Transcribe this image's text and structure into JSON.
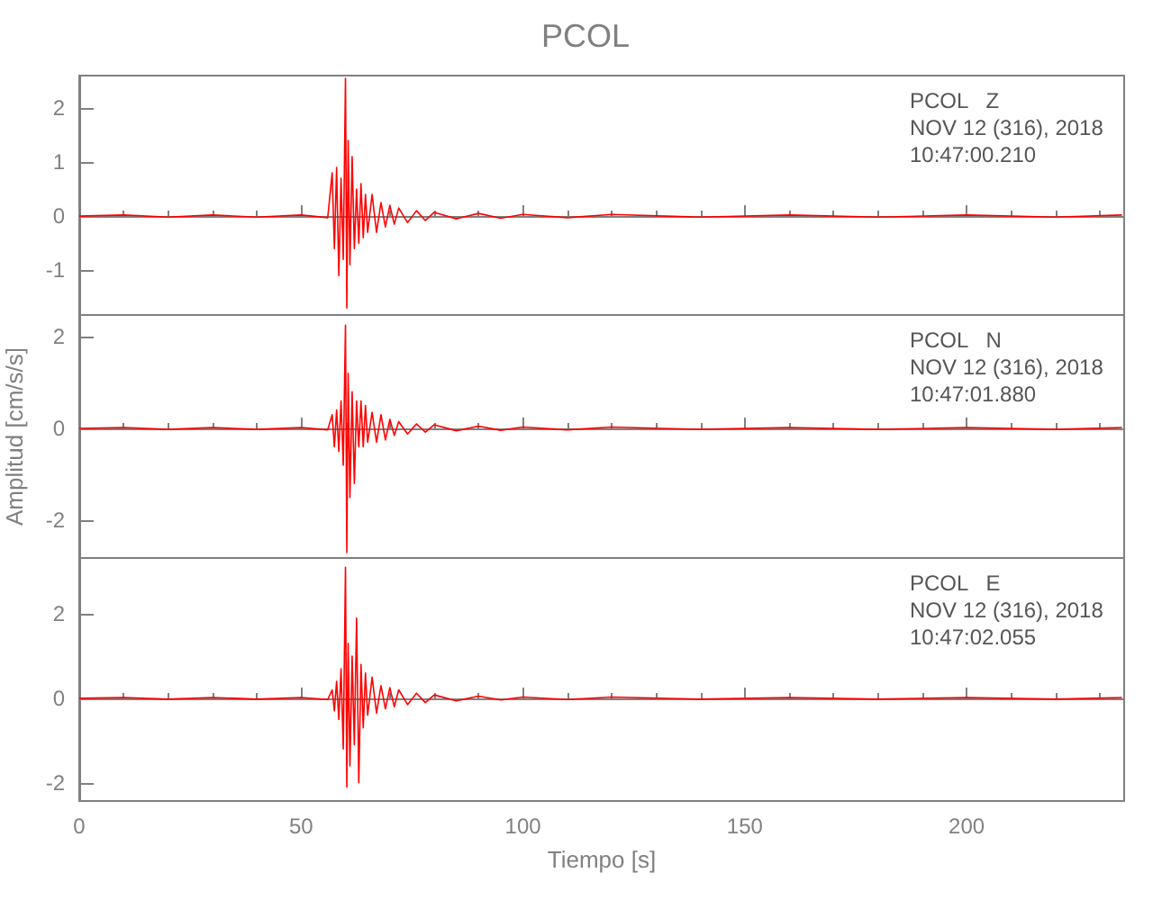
{
  "chart_data": [
    {
      "type": "line",
      "title": "PCOL",
      "annotations": [
        "PCOL   Z",
        "NOV 12 (316), 2018",
        "10:47:00.210"
      ],
      "xlim": [
        0,
        235.5
      ],
      "xticks": [
        0,
        50,
        100,
        150,
        200
      ],
      "ylim": [
        -1.83,
        2.6
      ],
      "yticks": [
        -1,
        0,
        1,
        2
      ],
      "tick_labels": "y",
      "marker": "none",
      "series": [
        {
          "color": "#ff0000",
          "x": [
            0,
            10,
            20,
            30,
            40,
            50,
            56,
            57,
            57.5,
            58,
            58.5,
            59,
            59.5,
            60,
            60.3,
            60.6,
            61,
            61.5,
            62,
            62.5,
            63,
            63.5,
            64,
            64.5,
            65,
            66,
            67,
            68,
            69,
            70,
            71,
            72,
            74,
            76,
            78,
            80,
            85,
            90,
            95,
            100,
            110,
            120,
            140,
            160,
            180,
            200,
            220,
            235
          ],
          "values": [
            0,
            0.02,
            -0.02,
            0.02,
            -0.02,
            0.02,
            -0.03,
            0.8,
            -0.6,
            0.9,
            -1.1,
            0.7,
            -0.8,
            2.55,
            -1.7,
            1.4,
            -0.9,
            1.1,
            -0.6,
            0.5,
            -0.5,
            0.6,
            -0.4,
            0.4,
            -0.3,
            0.4,
            -0.3,
            0.25,
            -0.2,
            0.2,
            -0.15,
            0.15,
            -0.12,
            0.1,
            -0.08,
            0.07,
            -0.05,
            0.05,
            -0.04,
            0.03,
            -0.03,
            0.03,
            -0.02,
            0.02,
            -0.02,
            0.02,
            -0.02,
            0.02
          ]
        }
      ]
    },
    {
      "type": "line",
      "ylabel": "Amplitud [cm/s/s]",
      "annotations": [
        "PCOL   N",
        "NOV 12 (316), 2018",
        "10:47:01.880"
      ],
      "xlim": [
        0,
        235.5
      ],
      "xticks": [
        0,
        50,
        100,
        150,
        200
      ],
      "ylim": [
        -2.82,
        2.47
      ],
      "yticks": [
        -2,
        0,
        2
      ],
      "tick_labels": "y",
      "marker": "none",
      "series": [
        {
          "color": "#ff0000",
          "x": [
            0,
            10,
            20,
            30,
            40,
            50,
            56,
            57,
            57.5,
            58,
            58.5,
            59,
            59.5,
            60,
            60.3,
            60.6,
            61,
            61.5,
            62,
            62.5,
            63,
            63.5,
            64,
            64.5,
            65,
            66,
            67,
            68,
            69,
            70,
            71,
            72,
            74,
            76,
            78,
            80,
            85,
            90,
            95,
            100,
            110,
            120,
            140,
            160,
            180,
            200,
            220,
            235
          ],
          "values": [
            0,
            0.02,
            -0.02,
            0.02,
            -0.02,
            0.02,
            -0.03,
            0.3,
            -0.4,
            0.4,
            -0.5,
            0.6,
            -0.8,
            2.25,
            -2.7,
            1.2,
            -1.5,
            0.8,
            -1.2,
            0.6,
            -0.4,
            0.6,
            -0.4,
            0.5,
            -0.3,
            0.35,
            -0.3,
            0.3,
            -0.25,
            0.2,
            -0.15,
            0.15,
            -0.12,
            0.1,
            -0.08,
            0.08,
            -0.05,
            0.05,
            -0.04,
            0.03,
            -0.03,
            0.03,
            -0.02,
            0.02,
            -0.02,
            0.02,
            -0.02,
            0.02
          ]
        }
      ]
    },
    {
      "type": "line",
      "xlabel": "Tiempo [s]",
      "annotations": [
        "PCOL   E",
        "NOV 12 (316), 2018",
        "10:47:02.055"
      ],
      "xlim": [
        0,
        235.5
      ],
      "xticks": [
        0,
        50,
        100,
        150,
        200
      ],
      "ylim": [
        -2.43,
        3.32
      ],
      "yticks": [
        -2,
        0,
        2
      ],
      "marker": "none",
      "series": [
        {
          "color": "#ff0000",
          "x": [
            0,
            10,
            20,
            30,
            40,
            50,
            56,
            57,
            57.5,
            58,
            58.5,
            59,
            59.5,
            60,
            60.3,
            60.6,
            61,
            61.5,
            62,
            62.5,
            63,
            63.5,
            64,
            64.5,
            65,
            66,
            67,
            68,
            69,
            70,
            71,
            72,
            74,
            76,
            78,
            80,
            85,
            90,
            95,
            100,
            110,
            120,
            140,
            160,
            180,
            200,
            220,
            235
          ],
          "values": [
            0,
            0.02,
            -0.02,
            0.02,
            -0.02,
            0.02,
            -0.03,
            0.2,
            -0.3,
            0.4,
            -0.5,
            0.7,
            -1.2,
            3.1,
            -2.1,
            1.3,
            -1.6,
            1.0,
            -1.1,
            1.9,
            -2.0,
            0.8,
            -0.7,
            0.6,
            -0.4,
            0.5,
            -0.35,
            0.3,
            -0.25,
            0.25,
            -0.2,
            0.2,
            -0.15,
            0.12,
            -0.1,
            0.08,
            -0.06,
            0.05,
            -0.04,
            0.03,
            -0.03,
            0.03,
            -0.02,
            0.02,
            -0.02,
            0.02,
            -0.02,
            0.02
          ]
        }
      ]
    }
  ]
}
